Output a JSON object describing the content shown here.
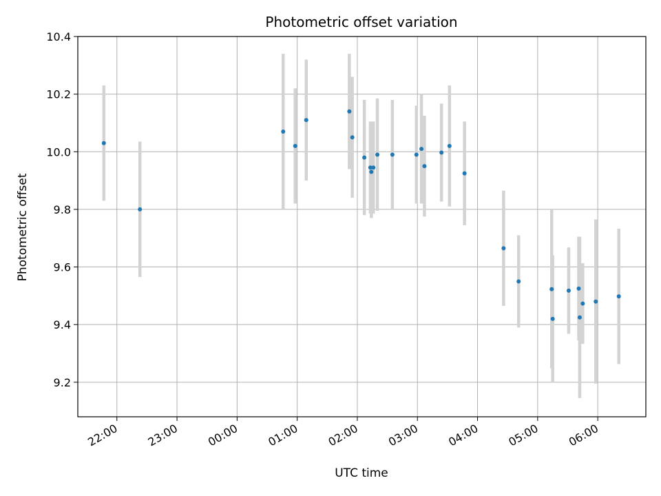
{
  "chart_data": {
    "type": "scatter",
    "title": "Photometric offset variation",
    "xlabel": "UTC time",
    "ylabel": "Photometric offset",
    "x_axis_type": "time",
    "x_reference_day": "2000-01-01",
    "xlim": [
      "2000-01-01T21:21",
      "2000-01-02T06:48"
    ],
    "ylim": [
      9.08,
      10.4
    ],
    "x_ticks": [
      {
        "time": "2000-01-01T22:00",
        "label": "22:00"
      },
      {
        "time": "2000-01-01T23:00",
        "label": "23:00"
      },
      {
        "time": "2000-01-02T00:00",
        "label": "00:00"
      },
      {
        "time": "2000-01-02T01:00",
        "label": "01:00"
      },
      {
        "time": "2000-01-02T02:00",
        "label": "02:00"
      },
      {
        "time": "2000-01-02T03:00",
        "label": "03:00"
      },
      {
        "time": "2000-01-02T04:00",
        "label": "04:00"
      },
      {
        "time": "2000-01-02T05:00",
        "label": "05:00"
      },
      {
        "time": "2000-01-02T06:00",
        "label": "06:00"
      }
    ],
    "y_ticks": [
      {
        "value": 9.2,
        "label": "9.2"
      },
      {
        "value": 9.4,
        "label": "9.4"
      },
      {
        "value": 9.6,
        "label": "9.6"
      },
      {
        "value": 9.8,
        "label": "9.8"
      },
      {
        "value": 10.0,
        "label": "10.0"
      },
      {
        "value": 10.2,
        "label": "10.2"
      },
      {
        "value": 10.4,
        "label": "10.4"
      }
    ],
    "grid": true,
    "point_color": "#1f77b4",
    "errorbar_color": "#d3d3d3",
    "points": [
      {
        "time": "2000-01-01T21:47",
        "y": 10.03,
        "err": 0.2
      },
      {
        "time": "2000-01-01T22:23",
        "y": 9.8,
        "err": 0.235
      },
      {
        "time": "2000-01-02T00:46",
        "y": 10.07,
        "err": 0.27
      },
      {
        "time": "2000-01-02T00:58",
        "y": 10.02,
        "err": 0.2
      },
      {
        "time": "2000-01-02T01:09",
        "y": 10.11,
        "err": 0.21
      },
      {
        "time": "2000-01-02T01:52",
        "y": 10.14,
        "err": 0.2
      },
      {
        "time": "2000-01-02T01:55",
        "y": 10.05,
        "err": 0.21
      },
      {
        "time": "2000-01-02T02:07",
        "y": 9.98,
        "err": 0.2
      },
      {
        "time": "2000-01-02T02:13",
        "y": 9.945,
        "err": 0.16
      },
      {
        "time": "2000-01-02T02:14",
        "y": 9.93,
        "err": 0.16
      },
      {
        "time": "2000-01-02T02:16",
        "y": 9.945,
        "err": 0.16
      },
      {
        "time": "2000-01-02T02:20",
        "y": 9.99,
        "err": 0.195
      },
      {
        "time": "2000-01-02T02:35",
        "y": 9.99,
        "err": 0.19
      },
      {
        "time": "2000-01-02T02:59",
        "y": 9.99,
        "err": 0.17
      },
      {
        "time": "2000-01-02T03:04",
        "y": 10.01,
        "err": 0.19
      },
      {
        "time": "2000-01-02T03:07",
        "y": 9.95,
        "err": 0.175
      },
      {
        "time": "2000-01-02T03:24",
        "y": 9.997,
        "err": 0.17
      },
      {
        "time": "2000-01-02T03:32",
        "y": 10.02,
        "err": 0.21
      },
      {
        "time": "2000-01-02T03:47",
        "y": 9.925,
        "err": 0.18
      },
      {
        "time": "2000-01-02T04:26",
        "y": 9.665,
        "err": 0.2
      },
      {
        "time": "2000-01-02T04:41",
        "y": 9.55,
        "err": 0.16
      },
      {
        "time": "2000-01-02T05:14",
        "y": 9.523,
        "err": 0.275
      },
      {
        "time": "2000-01-02T05:15",
        "y": 9.42,
        "err": 0.22
      },
      {
        "time": "2000-01-02T05:31",
        "y": 9.518,
        "err": 0.15
      },
      {
        "time": "2000-01-02T05:41",
        "y": 9.525,
        "err": 0.18
      },
      {
        "time": "2000-01-02T05:42",
        "y": 9.425,
        "err": 0.28
      },
      {
        "time": "2000-01-02T05:45",
        "y": 9.473,
        "err": 0.14
      },
      {
        "time": "2000-01-02T05:58",
        "y": 9.48,
        "err": 0.285
      },
      {
        "time": "2000-01-02T06:21",
        "y": 9.498,
        "err": 0.235
      }
    ]
  }
}
